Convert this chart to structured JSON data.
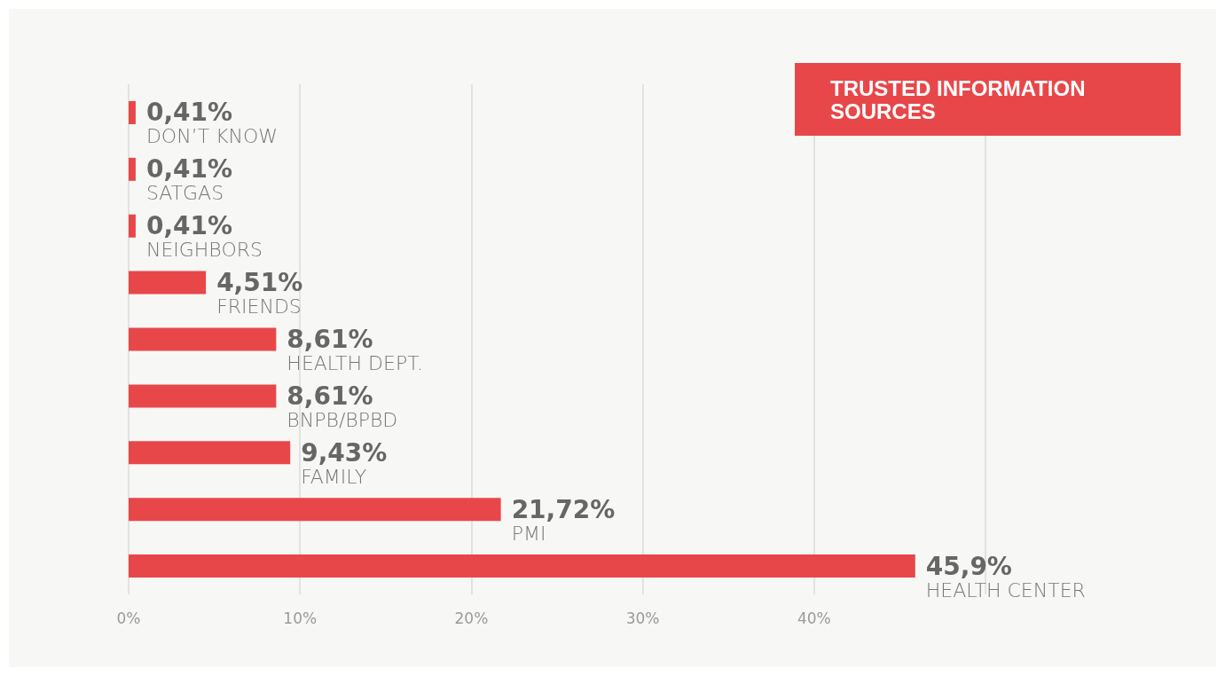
{
  "chart_data": {
    "type": "bar",
    "orientation": "horizontal",
    "title": "TRUSTED INFORMATION SOURCES",
    "categories": [
      "DON’T KNOW",
      "SATGAS",
      "NEIGHBORS",
      "FRIENDS",
      "HEALTH DEPT.",
      "BNPB/BPBD",
      "FAMILY",
      "PMI",
      "HEALTH CENTER"
    ],
    "values": [
      0.41,
      0.41,
      0.41,
      4.51,
      8.61,
      8.61,
      9.43,
      21.72,
      45.9
    ],
    "value_labels": [
      "0,41%",
      "0,41%",
      "0,41%",
      "4,51%",
      "8,61%",
      "8,61%",
      "9,43%",
      "21,72%",
      "45,9%"
    ],
    "color": "#e8474a",
    "xlim": [
      0,
      50
    ],
    "xticks": [
      {
        "value": 0,
        "label": "0%"
      },
      {
        "value": 10,
        "label": "10%"
      },
      {
        "value": 20,
        "label": "20%"
      },
      {
        "value": 30,
        "label": "30%"
      },
      {
        "value": 40,
        "label": "40%"
      },
      {
        "value": 50,
        "label": null
      }
    ],
    "grid": "x",
    "tick_labels": "x"
  }
}
